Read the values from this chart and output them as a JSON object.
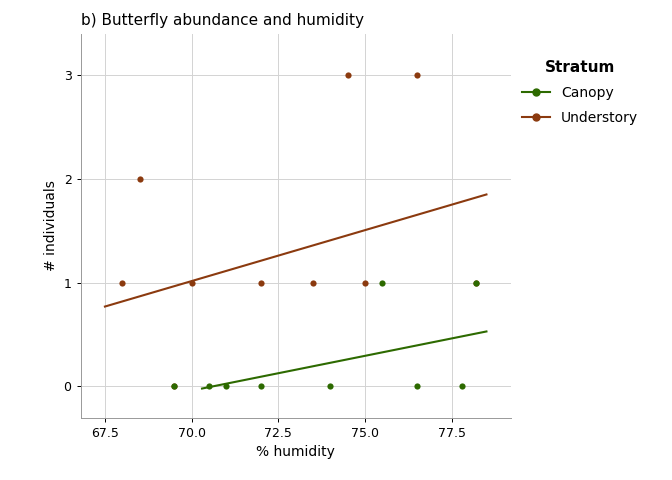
{
  "title": "b) Butterfly abundance and humidity",
  "xlabel": "% humidity",
  "ylabel": "# individuals",
  "xlim": [
    66.8,
    79.2
  ],
  "ylim": [
    -0.3,
    3.4
  ],
  "xticks": [
    67.5,
    70.0,
    72.5,
    75.0,
    77.5
  ],
  "yticks": [
    0,
    1,
    2,
    3
  ],
  "canopy_x": [
    69.5,
    70.5,
    71.0,
    72.0,
    74.0,
    75.5,
    76.5,
    77.8,
    78.2
  ],
  "canopy_y": [
    0,
    0,
    0,
    0,
    0,
    1,
    0,
    0,
    1
  ],
  "understory_x": [
    68.0,
    68.5,
    69.5,
    70.0,
    72.0,
    73.5,
    74.5,
    75.0,
    76.5,
    78.2
  ],
  "understory_y": [
    1,
    2,
    0,
    1,
    1,
    1,
    3,
    1,
    3,
    1
  ],
  "canopy_color": "#2d6a00",
  "understory_color": "#8B3A0F",
  "canopy_line_x": [
    70.3,
    78.5
  ],
  "canopy_line_y": [
    -0.02,
    0.53
  ],
  "understory_line_x": [
    67.5,
    78.5
  ],
  "understory_line_y": [
    0.77,
    1.85
  ],
  "background_color": "#ffffff",
  "grid_color": "#d3d3d3",
  "legend_title": "Stratum",
  "legend_canopy": "Canopy",
  "legend_understory": "Understory",
  "title_fontsize": 11,
  "axis_label_fontsize": 10,
  "tick_fontsize": 9,
  "legend_title_fontsize": 11,
  "legend_fontsize": 10,
  "marker_size": 20,
  "line_width": 1.5
}
